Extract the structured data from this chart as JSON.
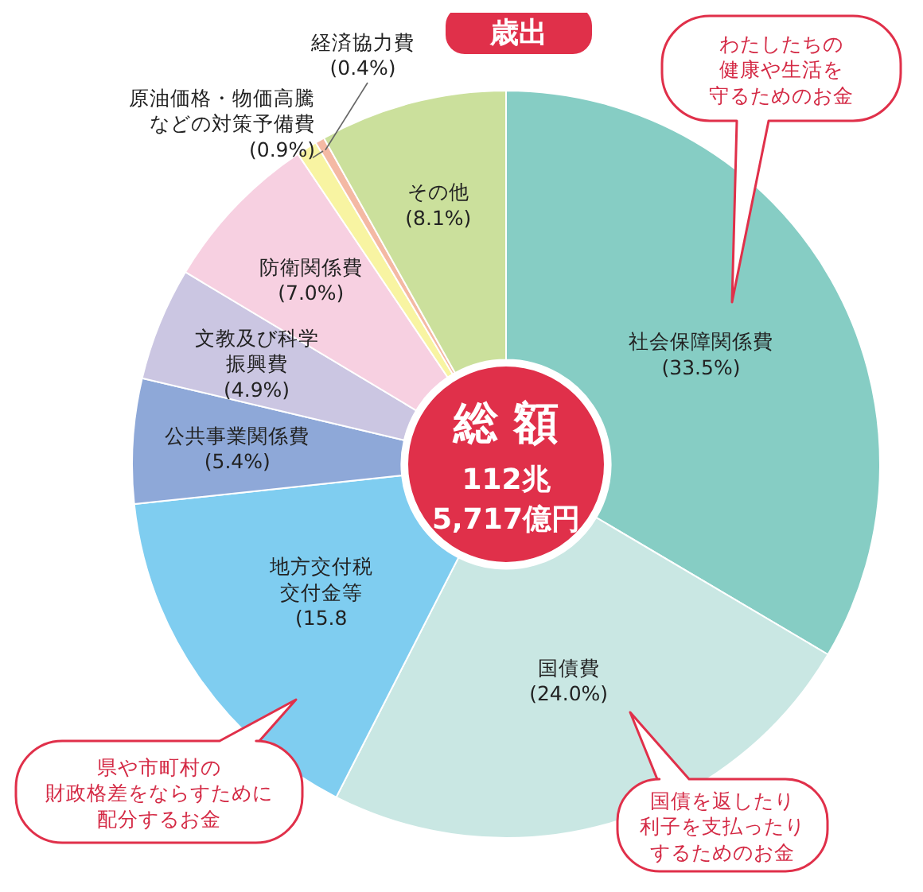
{
  "chart_data": {
    "type": "donut",
    "title": "歳出",
    "categories": [
      "社会保障関係費",
      "国債費",
      "地方交付税交付金等",
      "公共事業関係費",
      "文教及び科学振興費",
      "防衛関係費",
      "原油価格・物価高騰などの対策予備費",
      "経済協力費",
      "その他"
    ],
    "values": [
      33.5,
      24.0,
      15.8,
      5.4,
      4.9,
      7.0,
      0.9,
      0.4,
      8.1
    ],
    "value_labels": [
      "(33.5%)",
      "(24.0%)",
      "(15.8",
      "(5.4%)",
      "(4.9%)",
      "(7.0%)",
      "(0.9%)",
      "(0.4%)",
      "(8.1%)"
    ],
    "colors": [
      "#86cdc4",
      "#c9e7e3",
      "#7fcdf0",
      "#8ea8d8",
      "#cbc6e2",
      "#f7d0e1",
      "#f8f4a2",
      "#f4b9a4",
      "#cbe09c"
    ],
    "legend": false,
    "annotations": [
      "総 額",
      "112兆",
      "5,717億円",
      "わたしたちの健康や生活を守るためのお金",
      "国債を返したり利子を支払ったりするためのお金",
      "県や市町村の財政格差をならすために配分するお金"
    ]
  }
}
